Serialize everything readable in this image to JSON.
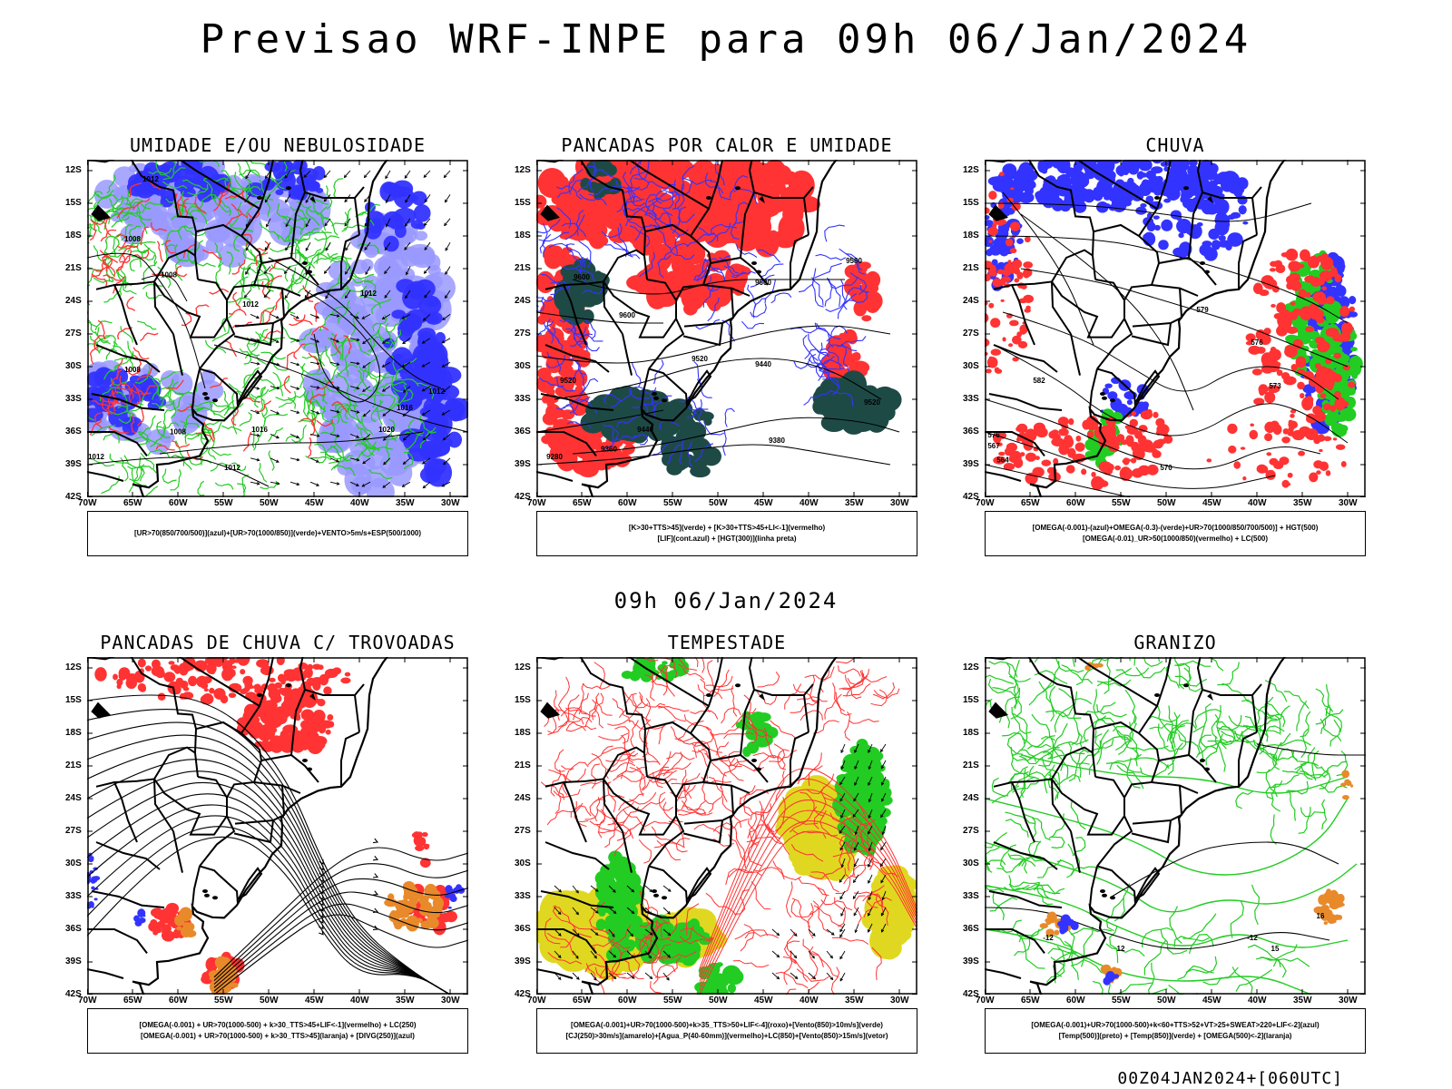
{
  "title": "Previsao WRF-INPE  para 09h 06/Jan/2024",
  "subtitle": "09h 06/Jan/2024",
  "footer": "00Z04JAN2024+[060UTC]",
  "lat_labels": [
    "12S",
    "15S",
    "18S",
    "21S",
    "24S",
    "27S",
    "30S",
    "33S",
    "36S",
    "39S",
    "42S"
  ],
  "lon_labels": [
    "70W",
    "65W",
    "60W",
    "55W",
    "50W",
    "45W",
    "40W",
    "35W",
    "30W"
  ],
  "panels": [
    {
      "title": "UMIDADE E/OU NEBULOSIDADE",
      "legend": [
        "[UR>70(850/700/500)](azul)+[UR>70(1000/850)](verde)+VENTO>5m/s+ESP(500/1000)"
      ],
      "contour_labels": [
        {
          "text": "1012",
          "lat": -13,
          "lon": -63
        },
        {
          "text": "1008",
          "lat": -18.5,
          "lon": -65
        },
        {
          "text": "1008",
          "lat": -21.8,
          "lon": -61
        },
        {
          "text": "1012",
          "lat": -24.5,
          "lon": -52
        },
        {
          "text": "1008",
          "lat": -30.5,
          "lon": -65
        },
        {
          "text": "1012",
          "lat": -23.5,
          "lon": -39
        },
        {
          "text": "1012",
          "lat": -32.5,
          "lon": -31.5
        },
        {
          "text": "1016",
          "lat": -34,
          "lon": -35
        },
        {
          "text": "1020",
          "lat": -36,
          "lon": -37
        },
        {
          "text": "1016",
          "lat": -36,
          "lon": -51
        },
        {
          "text": "1008",
          "lat": -36.2,
          "lon": -60
        },
        {
          "text": "1012",
          "lat": -38.5,
          "lon": -69
        },
        {
          "text": "1012",
          "lat": -39.5,
          "lon": -54
        }
      ]
    },
    {
      "title": "PANCADAS POR CALOR E UMIDADE",
      "legend": [
        "[K>30+TTS>45](verde) + [K>30+TTS>45+LI<-1](vermelho)",
        "[LIF](cont.azul) + [HGT(300)](linha preta)"
      ],
      "contour_labels": [
        {
          "text": "9600",
          "lat": -22,
          "lon": -65
        },
        {
          "text": "9600",
          "lat": -25.5,
          "lon": -60
        },
        {
          "text": "9600",
          "lat": -22.5,
          "lon": -45
        },
        {
          "text": "9580",
          "lat": -20.5,
          "lon": -35
        },
        {
          "text": "9520",
          "lat": -29.5,
          "lon": -52
        },
        {
          "text": "9520",
          "lat": -31.5,
          "lon": -66.5
        },
        {
          "text": "9440",
          "lat": -30,
          "lon": -45
        },
        {
          "text": "9440",
          "lat": -36,
          "lon": -58
        },
        {
          "text": "9520",
          "lat": -33.5,
          "lon": -33
        },
        {
          "text": "9380",
          "lat": -37,
          "lon": -43.5
        },
        {
          "text": "9360",
          "lat": -37.8,
          "lon": -62
        },
        {
          "text": "9280",
          "lat": -38.5,
          "lon": -68
        }
      ]
    },
    {
      "title": "CHUVA",
      "legend": [
        "[OMEGA(-0.001)-(azul)+OMEGA(-0.3)-(verde)+UR>70(1000/850/700/500)] + HGT(500)",
        "[OMEGA(-0.01)_UR>50(1000/850)(vermelho) + LC(500)"
      ],
      "contour_labels": [
        {
          "text": "579",
          "lat": -25,
          "lon": -46
        },
        {
          "text": "576",
          "lat": -28,
          "lon": -40
        },
        {
          "text": "573",
          "lat": -32,
          "lon": -38
        },
        {
          "text": "582",
          "lat": -31.5,
          "lon": -64
        },
        {
          "text": "576",
          "lat": -36.5,
          "lon": -69
        },
        {
          "text": "567",
          "lat": -37.5,
          "lon": -69
        },
        {
          "text": "564",
          "lat": -38.8,
          "lon": -68
        },
        {
          "text": "570",
          "lat": -39.5,
          "lon": -50
        }
      ]
    },
    {
      "title": "PANCADAS DE CHUVA C/ TROVOADAS",
      "legend": [
        "[OMEGA(-0.001) + UR>70(1000-500) + k>30_TTS>45+LIF<-1](vermelho) + LC(250)",
        "[OMEGA(-0.001) + UR>70(1000-500) + k>30_TTS>45](laranja) + [DIVG(250)](azul)"
      ],
      "contour_labels": []
    },
    {
      "title": "TEMPESTADE",
      "legend": [
        "[OMEGA(-0.001)+UR>70(1000-500)+k>35_TTS>50+LIF<-4](roxo)+[Vento(850)>10m/s](verde)",
        "[CJ(250)>30m/s](amarelo)+[Agua_P(40-60mm)](vermelho)+LC(850)+[Vento(850)>15m/s](vetor)"
      ],
      "contour_labels": []
    },
    {
      "title": "GRANIZO",
      "legend": [
        "[OMEGA(-0.001)+UR>70(1000-500)+k<60+TTS>52+VT>25+SWEAT>220+LIF<-2](azul)",
        "[Temp(500)](preto) + [Temp(850)](verde) + [OMEGA(500)<-2](laranja)"
      ],
      "contour_labels": [
        {
          "text": "-12",
          "lat": -37,
          "lon": -40.5
        },
        {
          "text": "15",
          "lat": -38,
          "lon": -38
        },
        {
          "text": "12",
          "lat": -38,
          "lon": -55
        },
        {
          "text": "16",
          "lat": -35,
          "lon": -33
        },
        {
          "text": "-12",
          "lat": -37,
          "lon": -63
        }
      ]
    }
  ],
  "colors": {
    "blue": "#3333ff",
    "lightblue": "#9999ff",
    "green": "#22cc22",
    "red": "#ff3333",
    "darkteal": "#1e4a46",
    "yellow": "#e0d820",
    "orange": "#e88a2a",
    "black": "#000000"
  }
}
